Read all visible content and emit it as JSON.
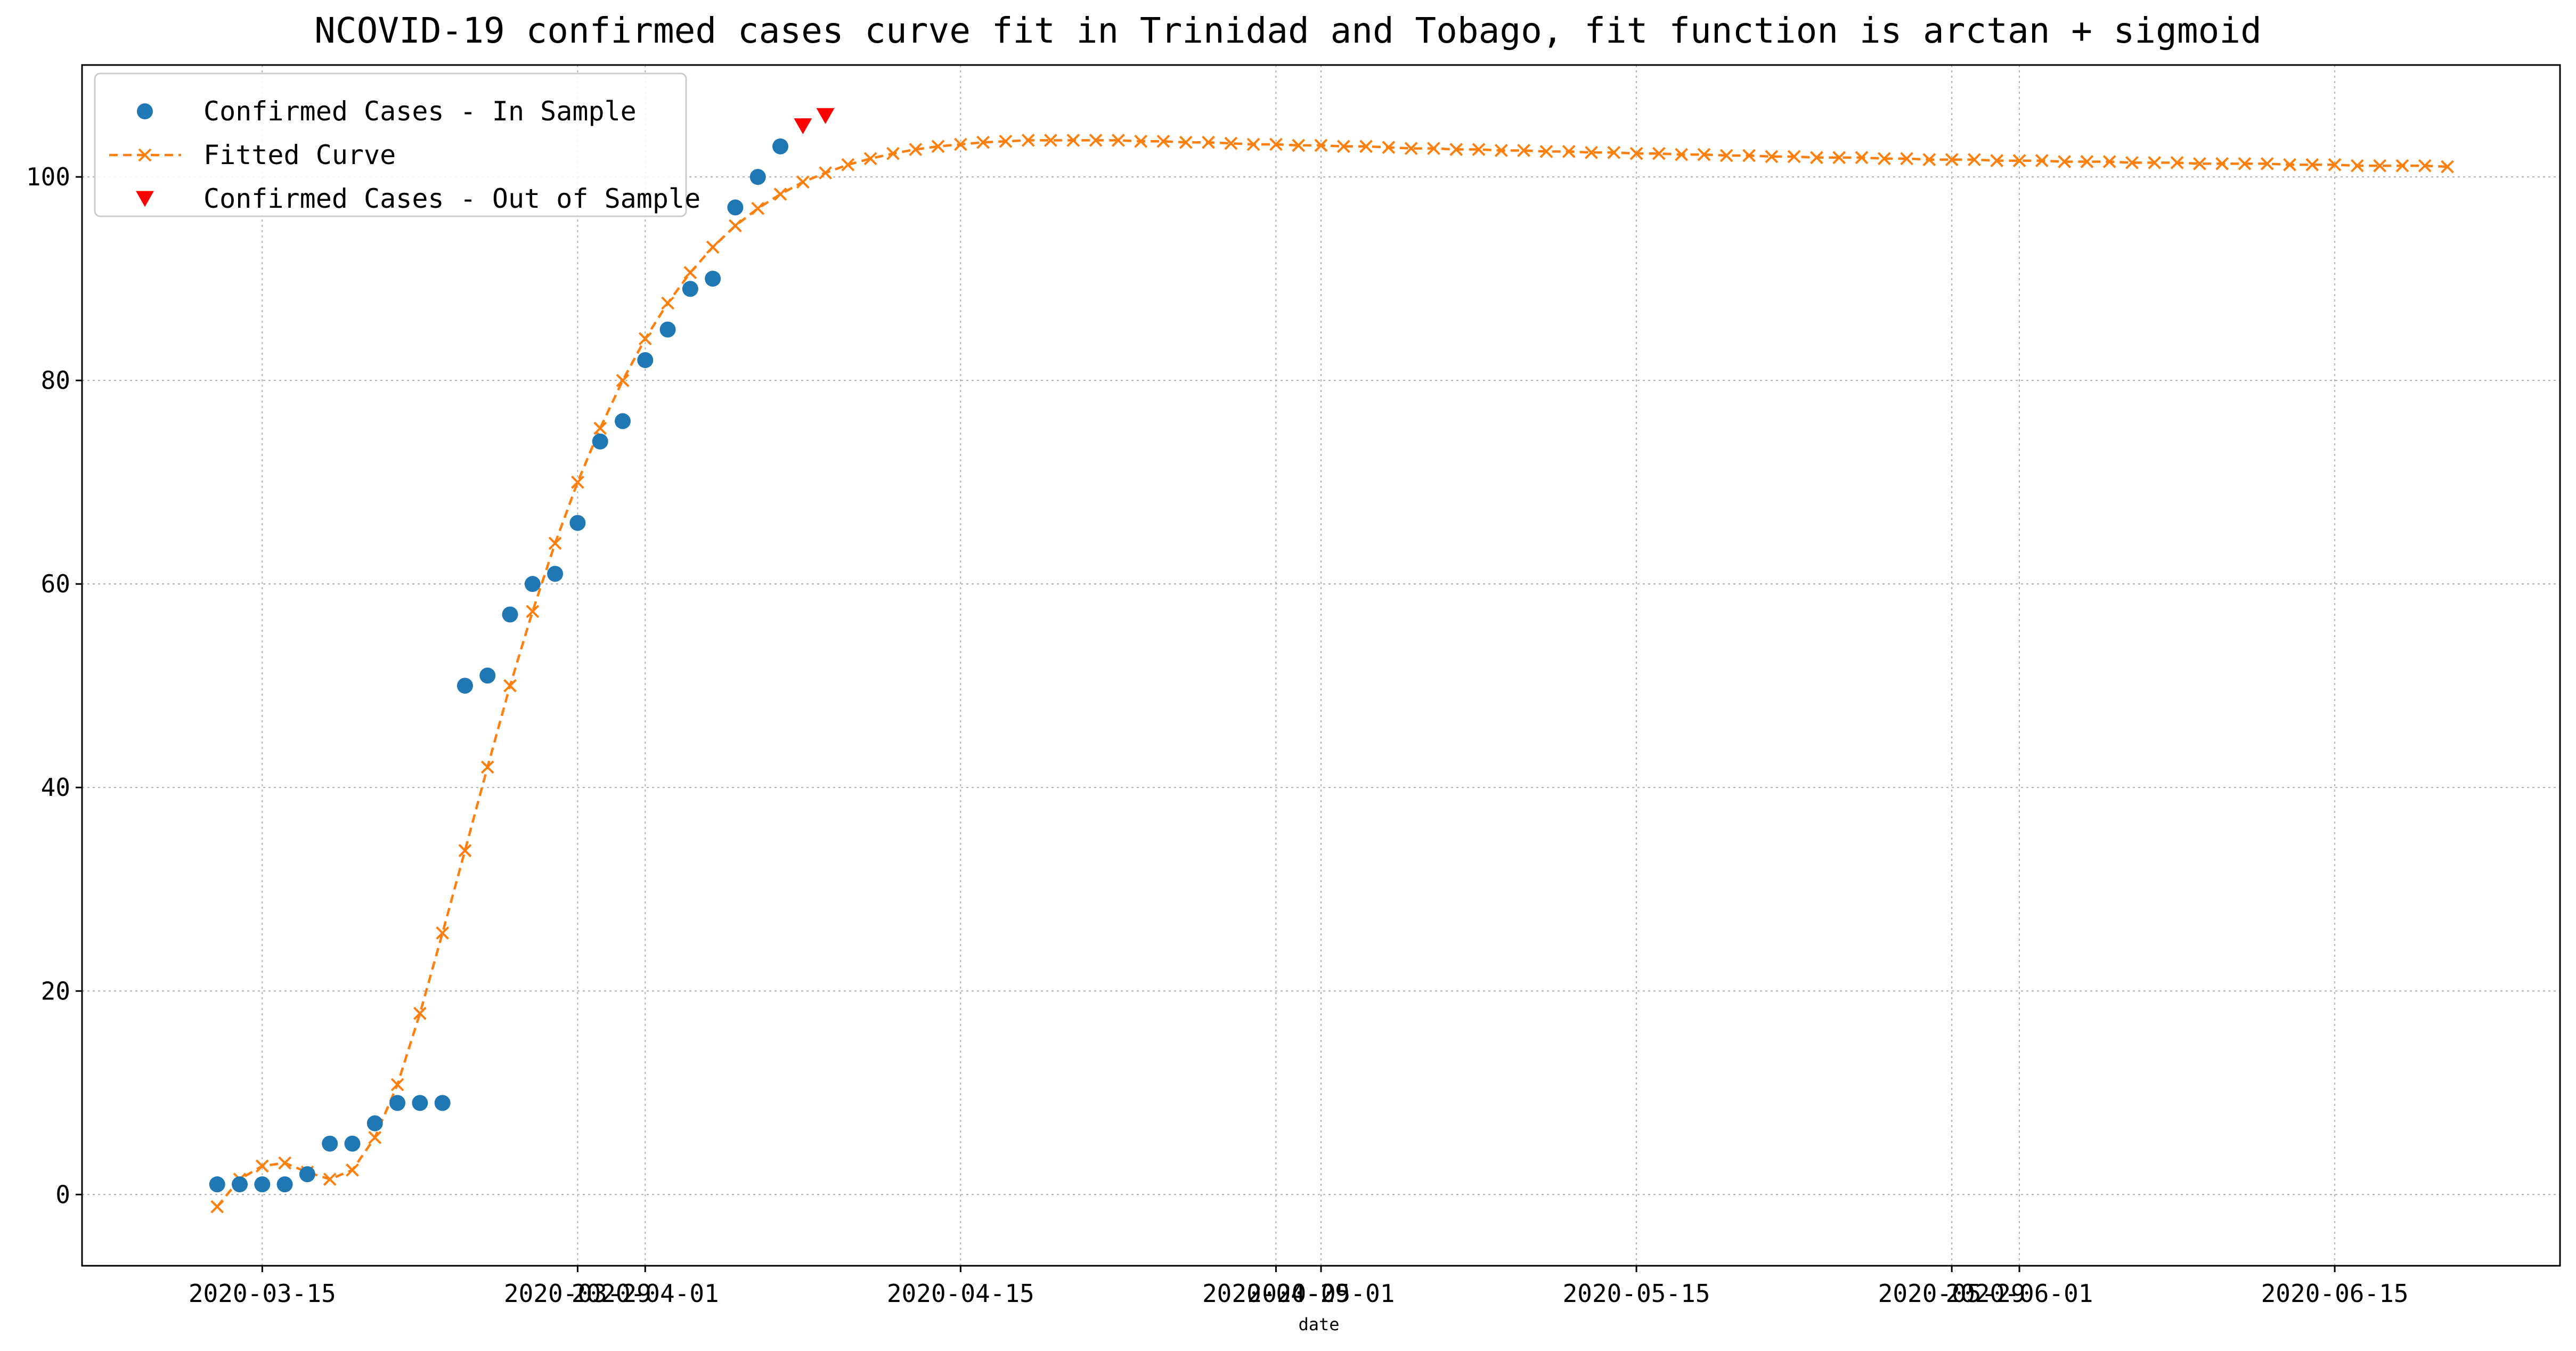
{
  "chart_data": {
    "type": "line",
    "title": "NCOVID-19 confirmed cases curve fit in Trinidad and Tobago, fit function is arctan + sigmoid",
    "xlabel": "date",
    "ylabel": "",
    "ylim": [
      -7,
      111
    ],
    "xlim": [
      "2020-03-07",
      "2020-06-25"
    ],
    "grid": true,
    "legend_placement": "top-left",
    "x_tick_labels": [
      "2020-03-15",
      "2020-03-29",
      "2020-04-01",
      "2020-04-15",
      "2020-04-29",
      "2020-05-01",
      "2020-05-15",
      "2020-05-29",
      "2020-06-01",
      "2020-06-15"
    ],
    "y_tick_labels": [
      "0",
      "20",
      "40",
      "60",
      "80",
      "100"
    ],
    "series": [
      {
        "name": "Confirmed Cases - In Sample",
        "marker": "circle",
        "color": "#1f77b4",
        "x": [
          "2020-03-13",
          "2020-03-14",
          "2020-03-15",
          "2020-03-16",
          "2020-03-17",
          "2020-03-18",
          "2020-03-19",
          "2020-03-20",
          "2020-03-21",
          "2020-03-22",
          "2020-03-23",
          "2020-03-24",
          "2020-03-25",
          "2020-03-26",
          "2020-03-27",
          "2020-03-28",
          "2020-03-29",
          "2020-03-30",
          "2020-03-31",
          "2020-04-01",
          "2020-04-02",
          "2020-04-03",
          "2020-04-04",
          "2020-04-05",
          "2020-04-06",
          "2020-04-07"
        ],
        "y": [
          1,
          1,
          1,
          1,
          2,
          5,
          5,
          7,
          9,
          9,
          9,
          50,
          51,
          57,
          60,
          61,
          66,
          74,
          76,
          82,
          85,
          89,
          90,
          97,
          100,
          103
        ]
      },
      {
        "name": "Fitted Curve",
        "marker": "x",
        "line": "dashed",
        "color": "#ff7f0e",
        "x": [
          "2020-03-13",
          "2020-03-14",
          "2020-03-15",
          "2020-03-16",
          "2020-03-17",
          "2020-03-18",
          "2020-03-19",
          "2020-03-20",
          "2020-03-21",
          "2020-03-22",
          "2020-03-23",
          "2020-03-24",
          "2020-03-25",
          "2020-03-26",
          "2020-03-27",
          "2020-03-28",
          "2020-03-29",
          "2020-03-30",
          "2020-03-31",
          "2020-04-01",
          "2020-04-02",
          "2020-04-03",
          "2020-04-04",
          "2020-04-05",
          "2020-04-06",
          "2020-04-07",
          "2020-04-08",
          "2020-04-09",
          "2020-04-10",
          "2020-04-11",
          "2020-04-12",
          "2020-04-13",
          "2020-04-14",
          "2020-04-15",
          "2020-04-16",
          "2020-04-17",
          "2020-04-18",
          "2020-04-19",
          "2020-04-20",
          "2020-04-21",
          "2020-04-22",
          "2020-04-23",
          "2020-04-24",
          "2020-04-25",
          "2020-04-26",
          "2020-04-27",
          "2020-04-28",
          "2020-04-29",
          "2020-04-30",
          "2020-05-01",
          "2020-05-02",
          "2020-05-03",
          "2020-05-04",
          "2020-05-05",
          "2020-05-06",
          "2020-05-07",
          "2020-05-08",
          "2020-05-09",
          "2020-05-10",
          "2020-05-11",
          "2020-05-12",
          "2020-05-13",
          "2020-05-14",
          "2020-05-15",
          "2020-05-16",
          "2020-05-17",
          "2020-05-18",
          "2020-05-19",
          "2020-05-20",
          "2020-05-21",
          "2020-05-22",
          "2020-05-23",
          "2020-05-24",
          "2020-05-25",
          "2020-05-26",
          "2020-05-27",
          "2020-05-28",
          "2020-05-29",
          "2020-05-30",
          "2020-05-31",
          "2020-06-01",
          "2020-06-02",
          "2020-06-03",
          "2020-06-04",
          "2020-06-05",
          "2020-06-06",
          "2020-06-07",
          "2020-06-08",
          "2020-06-09",
          "2020-06-10",
          "2020-06-11",
          "2020-06-12",
          "2020-06-13",
          "2020-06-14",
          "2020-06-15",
          "2020-06-16",
          "2020-06-17",
          "2020-06-18",
          "2020-06-19",
          "2020-06-20"
        ],
        "y": [
          -1.2,
          1.5,
          2.8,
          3.1,
          2.2,
          1.5,
          2.4,
          5.6,
          10.8,
          17.8,
          25.7,
          33.8,
          42,
          50,
          57.3,
          64,
          70,
          75.3,
          80,
          84.1,
          87.6,
          90.6,
          93.1,
          95.2,
          96.9,
          98.3,
          99.5,
          100.4,
          101.2,
          101.8,
          102.3,
          102.7,
          103,
          103.2,
          103.4,
          103.5,
          103.6,
          103.6,
          103.6,
          103.6,
          103.6,
          103.5,
          103.5,
          103.4,
          103.4,
          103.3,
          103.2,
          103.2,
          103.1,
          103.1,
          103,
          103,
          102.9,
          102.8,
          102.8,
          102.7,
          102.7,
          102.6,
          102.6,
          102.5,
          102.5,
          102.4,
          102.4,
          102.3,
          102.3,
          102.2,
          102.2,
          102.1,
          102.1,
          102,
          102,
          101.9,
          101.9,
          101.9,
          101.8,
          101.8,
          101.7,
          101.7,
          101.7,
          101.6,
          101.6,
          101.6,
          101.5,
          101.5,
          101.5,
          101.4,
          101.4,
          101.4,
          101.3,
          101.3,
          101.3,
          101.3,
          101.2,
          101.2,
          101.2,
          101.1,
          101.1,
          101.1,
          101.1,
          101
        ]
      },
      {
        "name": "Confirmed Cases - Out of Sample",
        "marker": "triangle-down",
        "color": "#ff0000",
        "x": [
          "2020-04-08",
          "2020-04-09"
        ],
        "y": [
          105,
          106
        ]
      }
    ]
  }
}
